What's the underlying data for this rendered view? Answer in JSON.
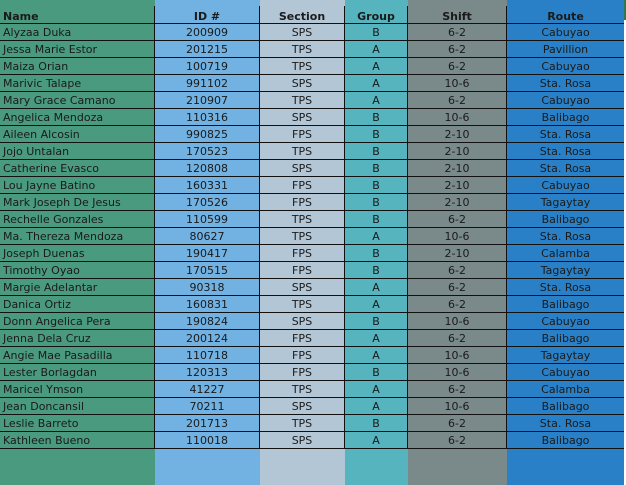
{
  "colors": {
    "name": "#4a9a80",
    "id": "#72b2e2",
    "section": "#b3c6d6",
    "group": "#55b4be",
    "shift": "#7a8a8a",
    "route": "#2a80c6"
  },
  "headers": [
    "Name",
    "ID #",
    "Section",
    "Group",
    "Shift",
    "Route"
  ],
  "rows": [
    [
      "Alyzaa Duka",
      "200909",
      "SPS",
      "B",
      "6-2",
      "Cabuyao"
    ],
    [
      "Jessa Marie Estor",
      "201215",
      "TPS",
      "A",
      "6-2",
      "Pavillion"
    ],
    [
      "Maiza Orian",
      "100719",
      "TPS",
      "A",
      "6-2",
      "Cabuyao"
    ],
    [
      "Marivic Talape",
      "991102",
      "SPS",
      "A",
      "10-6",
      "Sta. Rosa"
    ],
    [
      "Mary Grace Camano",
      "210907",
      "TPS",
      "A",
      "6-2",
      "Cabuyao"
    ],
    [
      "Angelica Mendoza",
      "110316",
      "SPS",
      "B",
      "10-6",
      "Balibago"
    ],
    [
      "Aileen Alcosin",
      "990825",
      "FPS",
      "B",
      "2-10",
      "Sta. Rosa"
    ],
    [
      "Jojo Untalan",
      "170523",
      "TPS",
      "B",
      "2-10",
      "Sta. Rosa"
    ],
    [
      "Catherine Evasco",
      "120808",
      "SPS",
      "B",
      "2-10",
      "Sta. Rosa"
    ],
    [
      "Lou Jayne Batino",
      "160331",
      "FPS",
      "B",
      "2-10",
      "Cabuyao"
    ],
    [
      "Mark Joseph De Jesus",
      "170526",
      "FPS",
      "B",
      "2-10",
      "Tagaytay"
    ],
    [
      "Rechelle Gonzales",
      "110599",
      "TPS",
      "B",
      "6-2",
      "Balibago"
    ],
    [
      "Ma. Thereza Mendoza",
      "80627",
      "TPS",
      "A",
      "10-6",
      "Sta. Rosa"
    ],
    [
      "Joseph Duenas",
      "190417",
      "FPS",
      "B",
      "2-10",
      "Calamba"
    ],
    [
      " Timothy Oyao",
      "170515",
      "FPS",
      "B",
      "6-2",
      "Tagaytay"
    ],
    [
      "Margie Adelantar",
      "90318",
      "SPS",
      "A",
      "6-2",
      "Sta. Rosa"
    ],
    [
      "Danica Ortiz",
      "160831",
      "TPS",
      "A",
      "6-2",
      "Balibago"
    ],
    [
      "Donn Angelica Pera",
      "190824",
      "SPS",
      "B",
      "10-6",
      "Cabuyao"
    ],
    [
      "Jenna Dela Cruz",
      "200124",
      "FPS",
      "A",
      "6-2",
      "Balibago"
    ],
    [
      "Angie Mae Pasadilla",
      "110718",
      "FPS",
      "A",
      "10-6",
      "Tagaytay"
    ],
    [
      "Lester Borlagdan",
      "120313",
      "FPS",
      "B",
      "10-6",
      "Cabuyao"
    ],
    [
      "Maricel Ymson",
      "41227",
      "TPS",
      "A",
      "6-2",
      "Calamba"
    ],
    [
      "Jean Doncansil",
      "70211",
      "SPS",
      "A",
      "10-6",
      "Balibago"
    ],
    [
      "Leslie Barreto",
      "201713",
      "TPS",
      "B",
      "6-2",
      "Sta. Rosa"
    ],
    [
      "Kathleen Bueno",
      "110018",
      "SPS",
      "A",
      "6-2",
      "Balibago"
    ]
  ]
}
